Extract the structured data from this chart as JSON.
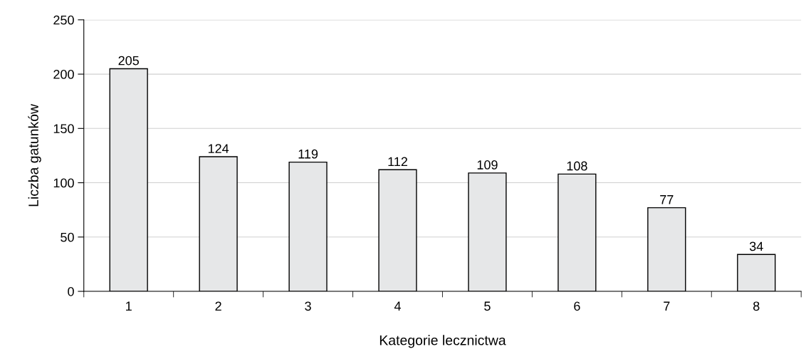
{
  "chart_data": {
    "type": "bar",
    "xlabel": "Kategorie lecznictwa",
    "ylabel": "Liczba gatunków",
    "categories": [
      "1",
      "2",
      "3",
      "4",
      "5",
      "6",
      "7",
      "8"
    ],
    "values": [
      205,
      124,
      119,
      112,
      109,
      108,
      77,
      34
    ],
    "color": "#e6e7e8",
    "ylim": [
      0,
      250
    ],
    "yticks": [
      0,
      50,
      100,
      150,
      200,
      250
    ],
    "grid": "y",
    "data_labels": true,
    "legend": false
  }
}
